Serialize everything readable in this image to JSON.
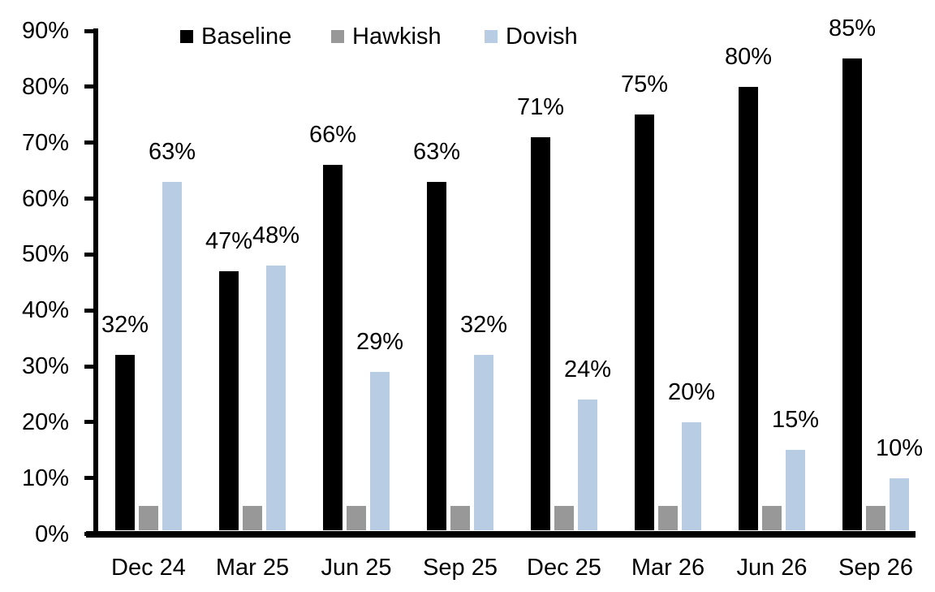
{
  "chart_data": {
    "type": "bar",
    "title": "",
    "categories": [
      "Dec 24",
      "Mar 25",
      "Jun 25",
      "Sep 25",
      "Dec 25",
      "Mar 26",
      "Jun 26",
      "Sep 26"
    ],
    "series": [
      {
        "name": "Baseline",
        "color": "#000000",
        "values": [
          32,
          47,
          66,
          63,
          71,
          75,
          80,
          85
        ],
        "data_labels": [
          "32%",
          "47%",
          "66%",
          "63%",
          "71%",
          "75%",
          "80%",
          "85%"
        ]
      },
      {
        "name": "Hawkish",
        "color": "#989898",
        "values": [
          5,
          5,
          5,
          5,
          5,
          5,
          5,
          5
        ],
        "data_labels": null
      },
      {
        "name": "Dovish",
        "color": "#b8cce4",
        "values": [
          63,
          48,
          29,
          32,
          24,
          20,
          15,
          10
        ],
        "data_labels": [
          "63%",
          "48%",
          "29%",
          "32%",
          "24%",
          "20%",
          "15%",
          "10%"
        ]
      }
    ],
    "y_axis": {
      "min": 0,
      "max": 90,
      "step": 10,
      "tick_labels": [
        "0%",
        "10%",
        "20%",
        "30%",
        "40%",
        "50%",
        "60%",
        "70%",
        "80%",
        "90%"
      ]
    },
    "x_axis": {
      "tick_labels": [
        "Dec 24",
        "Mar 25",
        "Jun 25",
        "Sep 25",
        "Dec 25",
        "Mar 26",
        "Jun 26",
        "Sep 26"
      ]
    },
    "legend": {
      "position": "top",
      "items": [
        {
          "label": "Baseline",
          "color": "#000000"
        },
        {
          "label": "Hawkish",
          "color": "#989898"
        },
        {
          "label": "Dovish",
          "color": "#b8cce4"
        }
      ]
    },
    "grid": false,
    "axis_color": "#000000",
    "text_color": "#000000"
  }
}
